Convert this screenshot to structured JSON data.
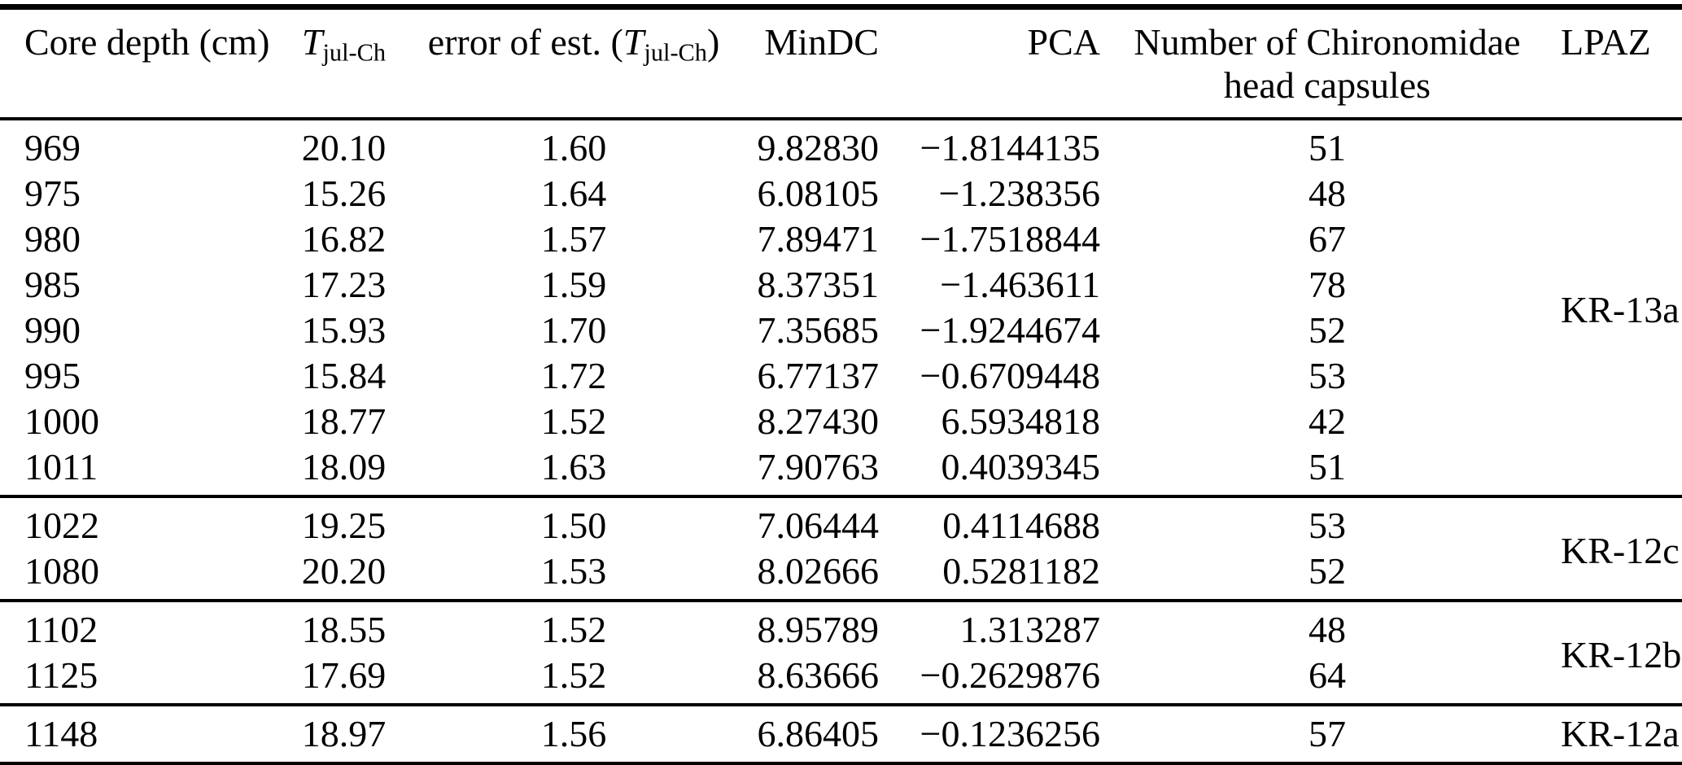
{
  "table": {
    "headers": {
      "core_depth": "Core depth (cm)",
      "t_symbol": "T",
      "t_sub": "jul-Ch",
      "error_prefix": "error of est. (",
      "error_suffix": ")",
      "mindc": "MinDC",
      "pca": "PCA",
      "capsules_line1": "Number of Chironomidae",
      "capsules_line2": "head capsules",
      "lpaz": "LPAZ"
    },
    "groups": [
      {
        "lpaz": "KR-13a",
        "rows": [
          {
            "depth": "969",
            "t": "20.10",
            "err": "1.60",
            "mindc": "9.82830",
            "pca": "−1.8144135",
            "n": "51"
          },
          {
            "depth": "975",
            "t": "15.26",
            "err": "1.64",
            "mindc": "6.08105",
            "pca": "−1.238356",
            "n": "48"
          },
          {
            "depth": "980",
            "t": "16.82",
            "err": "1.57",
            "mindc": "7.89471",
            "pca": "−1.7518844",
            "n": "67"
          },
          {
            "depth": "985",
            "t": "17.23",
            "err": "1.59",
            "mindc": "8.37351",
            "pca": "−1.463611",
            "n": "78"
          },
          {
            "depth": "990",
            "t": "15.93",
            "err": "1.70",
            "mindc": "7.35685",
            "pca": "−1.9244674",
            "n": "52"
          },
          {
            "depth": "995",
            "t": "15.84",
            "err": "1.72",
            "mindc": "6.77137",
            "pca": "−0.6709448",
            "n": "53"
          },
          {
            "depth": "1000",
            "t": "18.77",
            "err": "1.52",
            "mindc": "8.27430",
            "pca": "6.5934818",
            "n": "42"
          },
          {
            "depth": "1011",
            "t": "18.09",
            "err": "1.63",
            "mindc": "7.90763",
            "pca": "0.4039345",
            "n": "51"
          }
        ]
      },
      {
        "lpaz": "KR-12c",
        "rows": [
          {
            "depth": "1022",
            "t": "19.25",
            "err": "1.50",
            "mindc": "7.06444",
            "pca": "0.4114688",
            "n": "53"
          },
          {
            "depth": "1080",
            "t": "20.20",
            "err": "1.53",
            "mindc": "8.02666",
            "pca": "0.5281182",
            "n": "52"
          }
        ]
      },
      {
        "lpaz": "KR-12b",
        "rows": [
          {
            "depth": "1102",
            "t": "18.55",
            "err": "1.52",
            "mindc": "8.95789",
            "pca": "1.313287",
            "n": "48"
          },
          {
            "depth": "1125",
            "t": "17.69",
            "err": "1.52",
            "mindc": "8.63666",
            "pca": "−0.2629876",
            "n": "64"
          }
        ]
      },
      {
        "lpaz": "KR-12a",
        "rows": [
          {
            "depth": "1148",
            "t": "18.97",
            "err": "1.56",
            "mindc": "6.86405",
            "pca": "−0.1236256",
            "n": "57"
          }
        ]
      }
    ]
  },
  "colors": {
    "text": "#000000",
    "background": "#ffffff",
    "rule": "#000000"
  }
}
